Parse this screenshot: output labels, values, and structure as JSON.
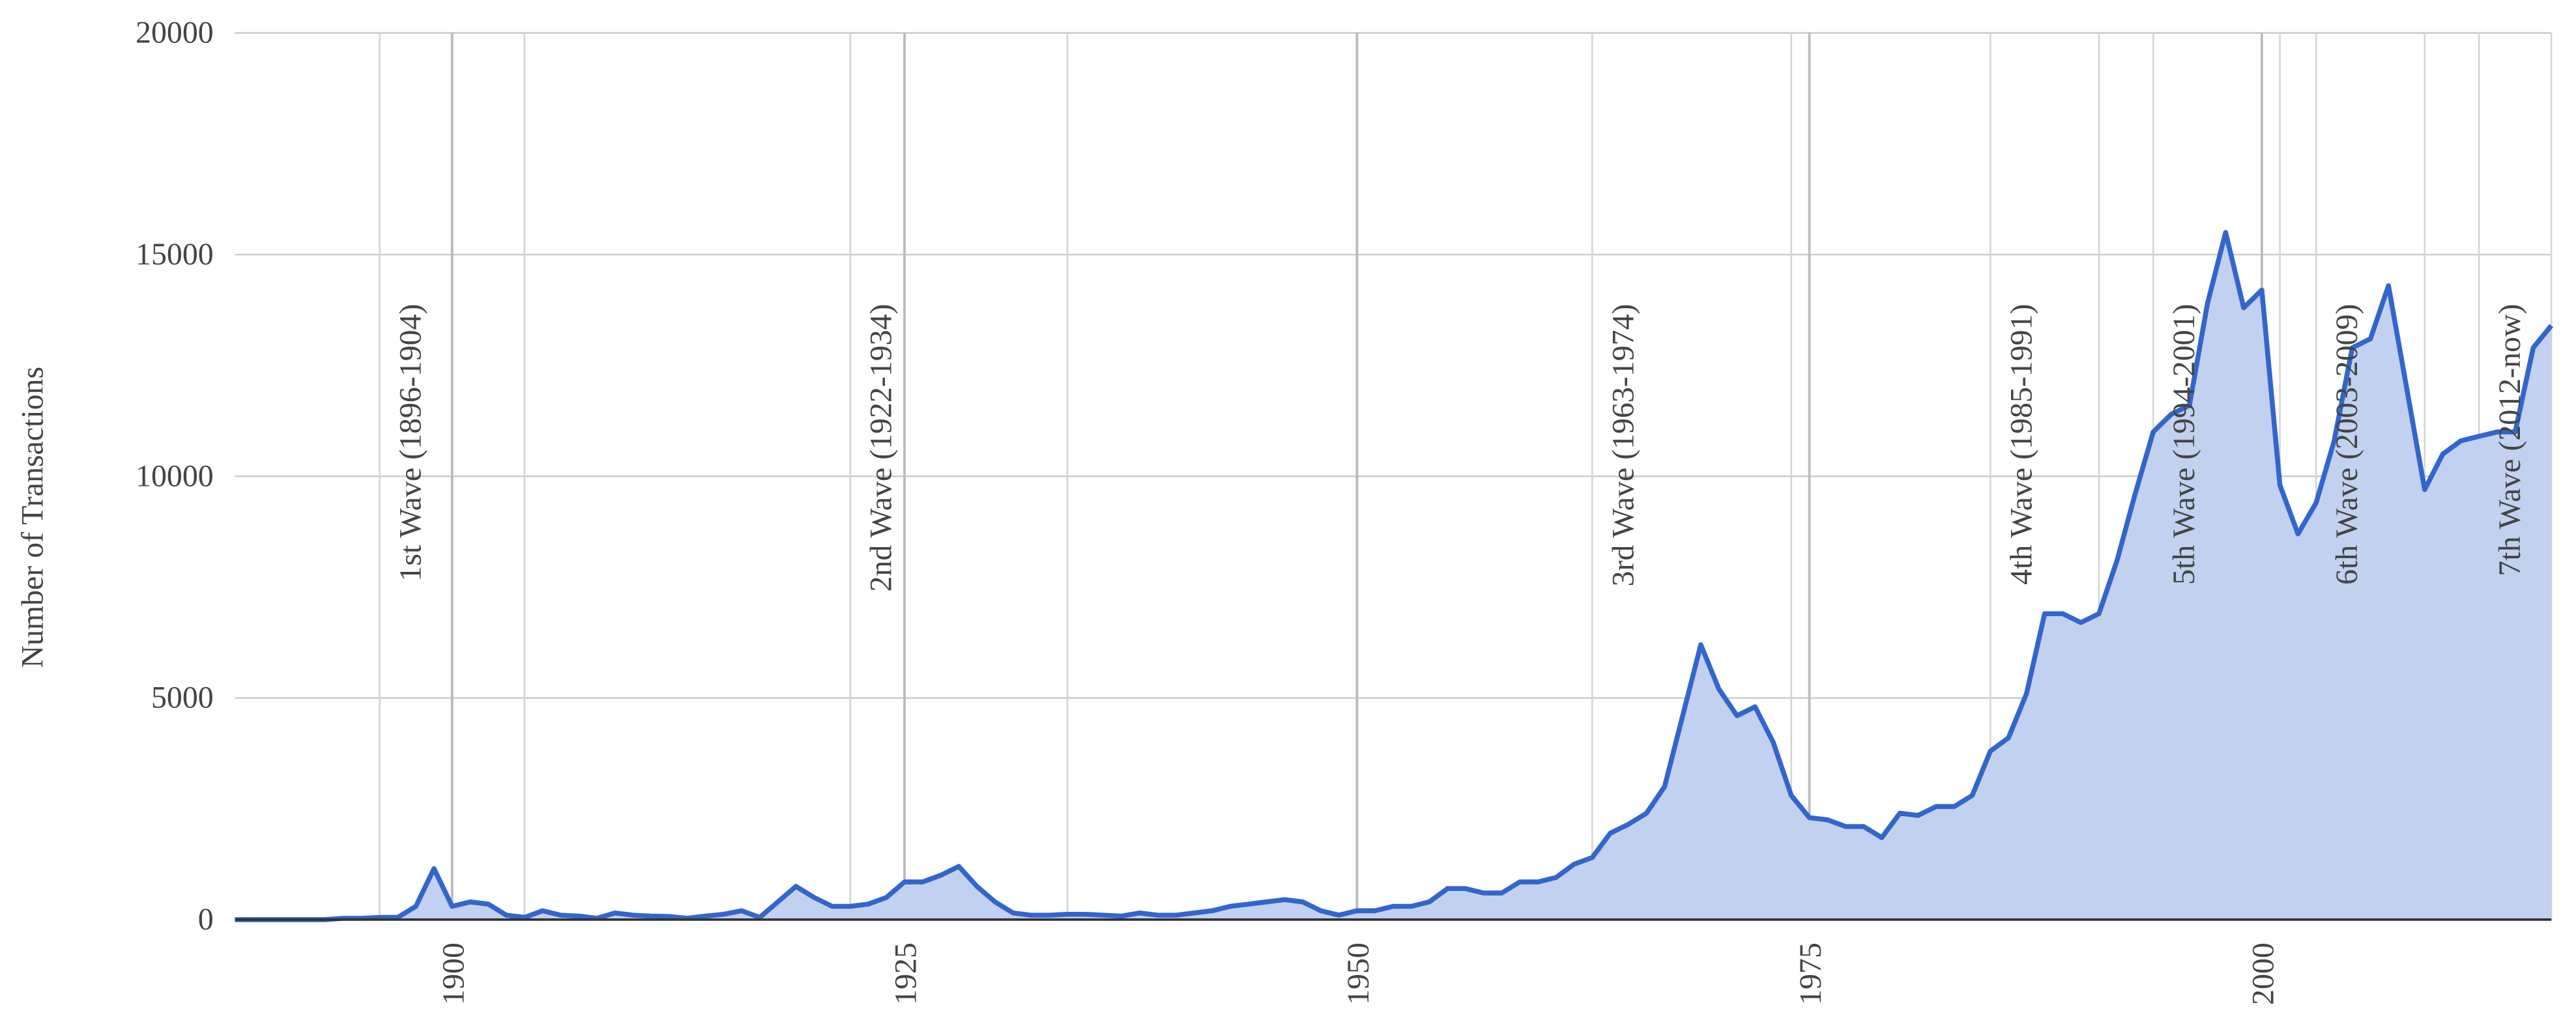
{
  "chart_data": {
    "type": "area",
    "y_label": "Number of Transactions",
    "x": [
      1888,
      1889,
      1890,
      1891,
      1892,
      1893,
      1894,
      1895,
      1896,
      1897,
      1898,
      1899,
      1900,
      1901,
      1902,
      1903,
      1904,
      1905,
      1906,
      1907,
      1908,
      1909,
      1910,
      1911,
      1912,
      1913,
      1914,
      1915,
      1916,
      1917,
      1918,
      1919,
      1920,
      1921,
      1922,
      1923,
      1924,
      1925,
      1926,
      1927,
      1928,
      1929,
      1930,
      1931,
      1932,
      1933,
      1934,
      1935,
      1936,
      1937,
      1938,
      1939,
      1940,
      1941,
      1942,
      1943,
      1944,
      1945,
      1946,
      1947,
      1948,
      1949,
      1950,
      1951,
      1952,
      1953,
      1954,
      1955,
      1956,
      1957,
      1958,
      1959,
      1960,
      1961,
      1962,
      1963,
      1964,
      1965,
      1966,
      1967,
      1968,
      1969,
      1970,
      1971,
      1972,
      1973,
      1974,
      1975,
      1976,
      1977,
      1978,
      1979,
      1980,
      1981,
      1982,
      1983,
      1984,
      1985,
      1986,
      1987,
      1988,
      1989,
      1990,
      1991,
      1992,
      1993,
      1994,
      1995,
      1996,
      1997,
      1998,
      1999,
      2000,
      2001,
      2002,
      2003,
      2004,
      2005,
      2006,
      2007,
      2008,
      2009,
      2010,
      2011,
      2012,
      2013,
      2014,
      2015,
      2016
    ],
    "series": [
      {
        "color": "#3366cc",
        "fill": "#c2d1ef",
        "values": [
          0,
          0,
          0,
          0,
          0,
          0,
          30,
          30,
          50,
          50,
          300,
          1150,
          300,
          400,
          350,
          100,
          50,
          200,
          100,
          80,
          30,
          150,
          100,
          80,
          70,
          30,
          80,
          120,
          200,
          50,
          400,
          750,
          500,
          300,
          300,
          350,
          500,
          850,
          850,
          1000,
          1200,
          750,
          400,
          150,
          100,
          100,
          120,
          120,
          100,
          80,
          150,
          100,
          100,
          150,
          200,
          300,
          350,
          400,
          450,
          400,
          200,
          100,
          200,
          200,
          300,
          300,
          400,
          700,
          700,
          600,
          600,
          850,
          850,
          950,
          1250,
          1400,
          1950,
          2150,
          2400,
          3000,
          4600,
          6200,
          5200,
          4600,
          4800,
          4000,
          2800,
          2300,
          2250,
          2100,
          2100,
          1850,
          2400,
          2350,
          2550,
          2550,
          2800,
          3800,
          4100,
          5100,
          6900,
          6900,
          6700,
          6900,
          8100,
          9600,
          11000,
          11400,
          11600,
          13900,
          15500,
          13800,
          14200,
          9800,
          8700,
          9400,
          10800,
          12900,
          13100,
          14300,
          12000,
          9700,
          10500,
          10800,
          10900,
          11000,
          11000,
          12900,
          13400
        ]
      }
    ],
    "xlim": [
      1888,
      2016
    ],
    "xticks": [
      1900,
      1925,
      1950,
      1975,
      2000
    ],
    "ylim": [
      0,
      20000
    ],
    "yticks": [
      0,
      5000,
      10000,
      15000,
      20000
    ],
    "grid": true,
    "annotations": [
      {
        "text": "1st Wave (1896-1904)",
        "start": 1896,
        "end": 1904
      },
      {
        "text": "2nd Wave (1922-1934)",
        "start": 1922,
        "end": 1934
      },
      {
        "text": "3rd Wave (1963-1974)",
        "start": 1963,
        "end": 1974
      },
      {
        "text": "4th Wave (1985-1991)",
        "start": 1985,
        "end": 1991
      },
      {
        "text": "5th Wave (1994-2001)",
        "start": 1994,
        "end": 2001
      },
      {
        "text": "6th Wave (2003-2009)",
        "start": 2003,
        "end": 2009
      },
      {
        "text": "7th Wave (2012-now)",
        "start": 2012,
        "end": 2016
      }
    ]
  }
}
